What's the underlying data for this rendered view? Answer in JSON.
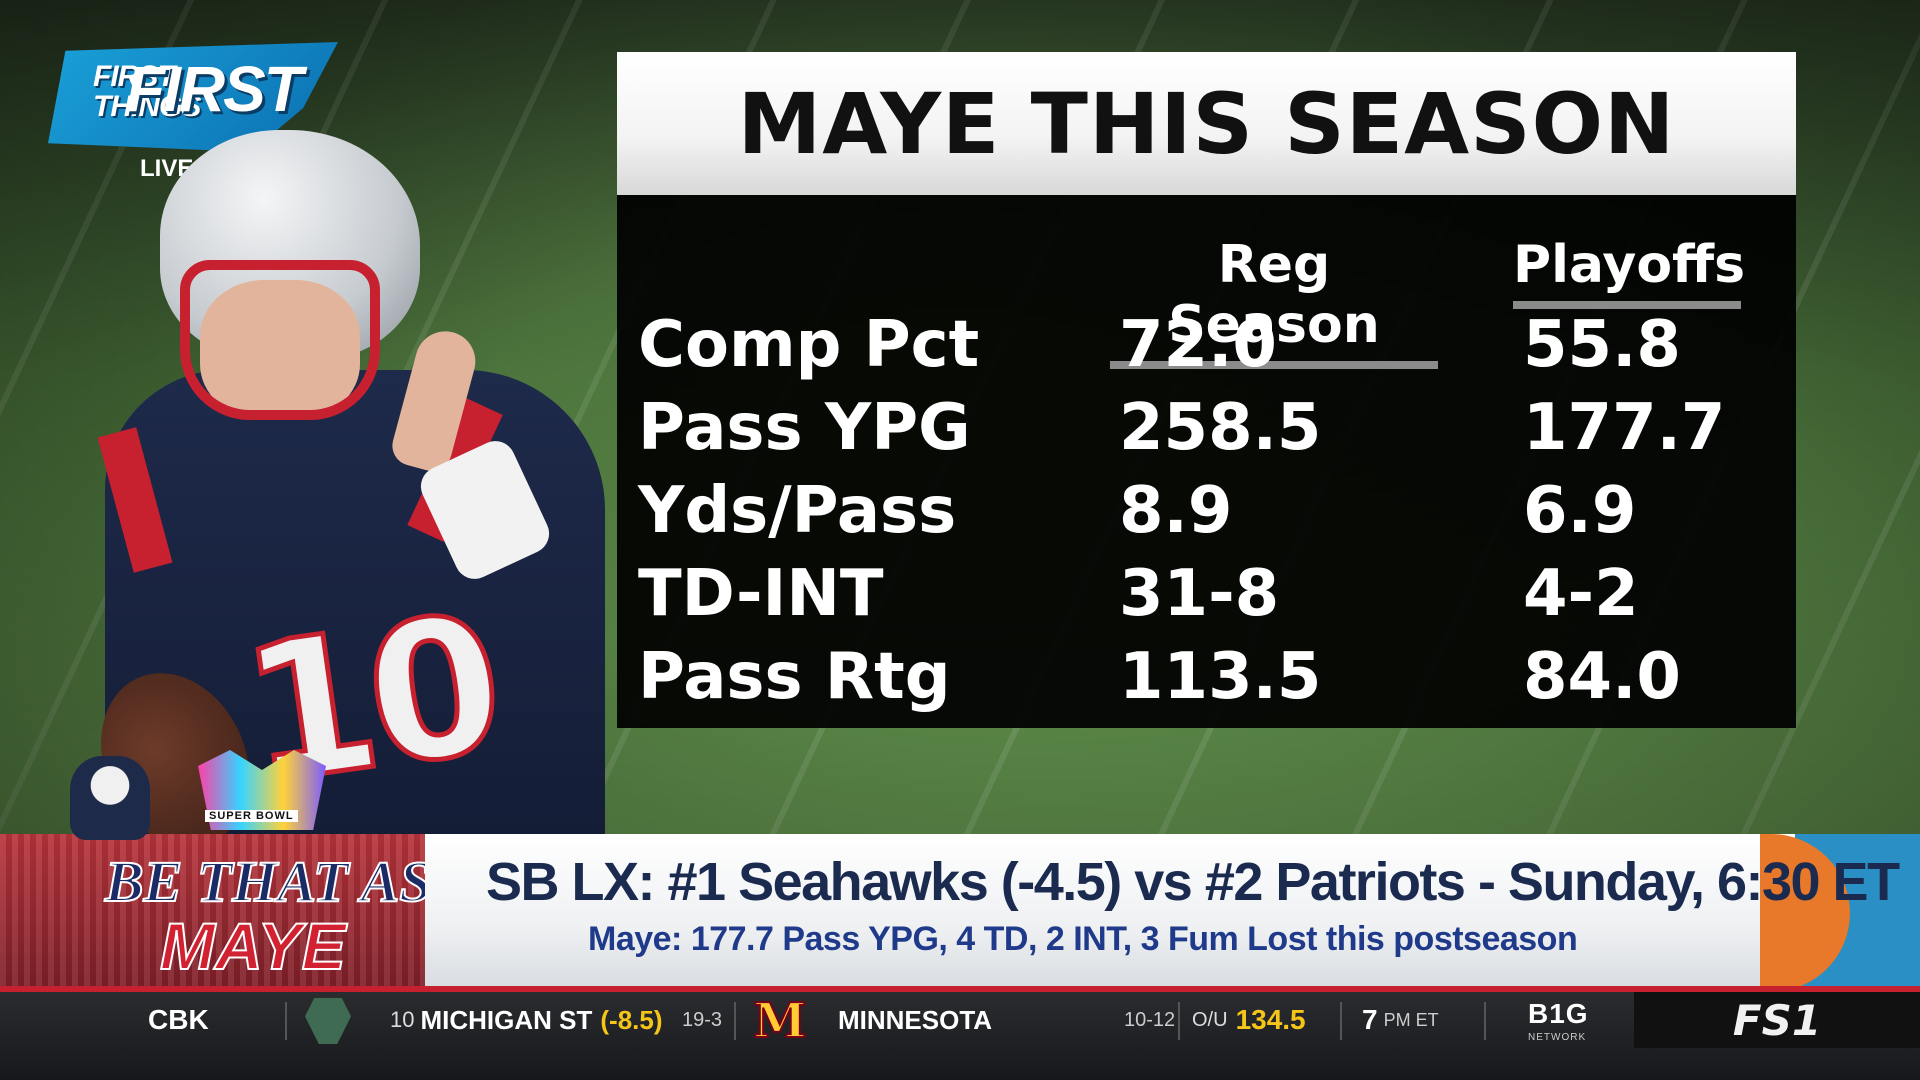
{
  "show": {
    "logo_small": "FIRST THINGS",
    "logo_big": "FIRST",
    "live_label": "LIVE"
  },
  "player": {
    "jersey_number": "10"
  },
  "stats": {
    "title": "MAYE THIS SEASON",
    "columns": [
      "Reg Season",
      "Playoffs"
    ],
    "rows": [
      {
        "label": "Comp Pct",
        "reg": "72.0",
        "playoffs": "55.8"
      },
      {
        "label": "Pass YPG",
        "reg": "258.5",
        "playoffs": "177.7"
      },
      {
        "label": "Yds/Pass",
        "reg": "8.9",
        "playoffs": "6.9"
      },
      {
        "label": "TD-INT",
        "reg": "31-8",
        "playoffs": "4-2"
      },
      {
        "label": "Pass Rtg",
        "reg": "113.5",
        "playoffs": "84.0"
      }
    ]
  },
  "lower_third": {
    "segment_line1": "BE THAT AS IT",
    "segment_line2": "MAYE",
    "sb_logo_label": "SUPER BOWL",
    "headline": "SB LX: #1 Seahawks (-4.5) vs #2 Patriots - Sunday, 6:30 ET",
    "subline": "Maye: 177.7 Pass YPG, 4 TD, 2 INT, 3 Fum Lost this postseason"
  },
  "ticker": {
    "league": "CBK",
    "away_rank": "10",
    "away_team": "MICHIGAN ST",
    "away_spread": "(-8.5)",
    "away_record": "19-3",
    "home_logo": "M",
    "home_team": "MINNESOTA",
    "home_record": "10-12",
    "ou_label": "O/U",
    "ou_total": "134.5",
    "time": "7",
    "time_suffix": "PM ET",
    "network": "B1G",
    "network_sub": "NETWORK",
    "channel": "FS1"
  },
  "colors": {
    "patriots_navy": "#1e2a4a",
    "patriots_red": "#c7202f",
    "ticker_gold": "#f5c518",
    "headline_navy": "#1b2b50"
  }
}
